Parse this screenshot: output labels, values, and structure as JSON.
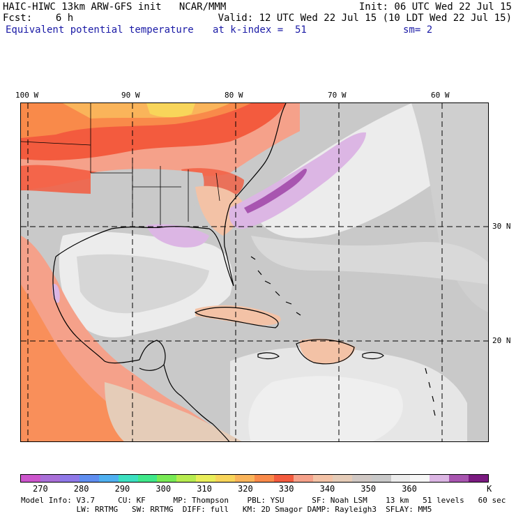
{
  "header": {
    "line1_left": "HAIC-HIWC 13km ARW-GFS init   NCAR/MMM",
    "line1_right": "Init: 06 UTC Wed 22 Jul 15",
    "line2_left": "Fcst:    6 h",
    "line2_right": "Valid: 12 UTC Wed 22 Jul 15 (10 LDT Wed 22 Jul 15)",
    "line3_left": "Equivalent potential temperature",
    "line3_mid": "at k-index =  51",
    "line3_right": "sm= 2"
  },
  "map": {
    "lon_labels": [
      "100 W",
      "90 W",
      "80 W",
      "70 W",
      "60 W"
    ],
    "lat_labels": [
      "30 N",
      "20 N"
    ]
  },
  "colorbar": {
    "colors": [
      "#cc55cc",
      "#a96fd8",
      "#8f78e8",
      "#5f8ef0",
      "#4fb0f0",
      "#3ce0c0",
      "#3fe88a",
      "#78ea55",
      "#b7ec50",
      "#e9ee5a",
      "#f8d55a",
      "#fab45a",
      "#f98a4a",
      "#f35b3e",
      "#f5a18a",
      "#f3c2a6",
      "#e5ccb8",
      "#d0c8c4",
      "#c9c9c9",
      "#ececec",
      "#f6f6f6",
      "#dcb6e4",
      "#a855b0",
      "#7a1a80"
    ],
    "tick_labels": [
      "270",
      "280",
      "290",
      "300",
      "310",
      "320",
      "330",
      "340",
      "350",
      "360"
    ],
    "unit": "K"
  },
  "model_info": {
    "line1": "Model Info: V3.7     CU: KF      MP: Thompson    PBL: YSU      SF: Noah LSM    13 km   51 levels   60 sec",
    "line2": "            LW: RRTMG   SW: RRTMG  DIFF: full   KM: 2D Smagor DAMP: Rayleigh3  SFLAY: MM5"
  }
}
